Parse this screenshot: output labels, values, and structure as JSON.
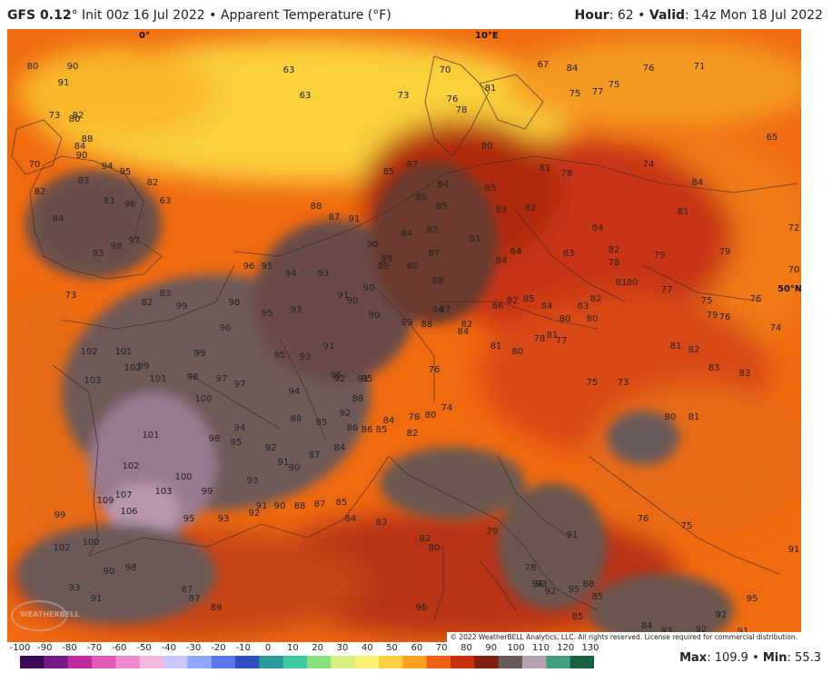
{
  "header": {
    "model": "GFS 0.12",
    "degree_mark": "°",
    "init": "Init 00z 16 Jul 2022",
    "separator": "•",
    "product": "Apparent Temperature (°F)",
    "hour_label": "Hour",
    "hour_value": ": 62",
    "valid_label": "Valid",
    "valid_value": ": 14z Mon 18 Jul 2022"
  },
  "map": {
    "coord_labels": [
      "0°",
      "10°E",
      "50°N"
    ],
    "copyright": "© 2022 WeatherBELL Analytics, LLC. All rights reserved. License required for commercial distribution.",
    "logo_text": "WEATHERBELL",
    "temperature_labels": [
      "80",
      "82",
      "84",
      "88",
      "90",
      "94",
      "95",
      "96",
      "97",
      "98",
      "93",
      "90",
      "91",
      "80",
      "73",
      "70",
      "82",
      "84",
      "83",
      "83",
      "82",
      "63",
      "63",
      "63",
      "73",
      "70",
      "76",
      "78",
      "80",
      "81",
      "75",
      "77",
      "75",
      "76",
      "71",
      "65",
      "67",
      "84",
      "85",
      "87",
      "86",
      "84",
      "85",
      "83",
      "82",
      "81",
      "78",
      "74",
      "84",
      "84",
      "83",
      "84",
      "82",
      "81",
      "78",
      "72",
      "88",
      "87",
      "91",
      "90",
      "89",
      "88",
      "87",
      "85",
      "84",
      "83",
      "81",
      "84",
      "79",
      "70",
      "96",
      "95",
      "94",
      "93",
      "91",
      "90",
      "89",
      "88",
      "87",
      "86",
      "85",
      "84",
      "83",
      "82",
      "81",
      "80",
      "79",
      "77",
      "75",
      "73",
      "82",
      "83",
      "99",
      "98",
      "96",
      "95",
      "93",
      "90",
      "90",
      "89",
      "88",
      "84",
      "82",
      "81",
      "80",
      "80",
      "79",
      "76",
      "76",
      "74",
      "102",
      "101",
      "99",
      "98",
      "97",
      "95",
      "93",
      "91",
      "92",
      "91",
      "84",
      "82",
      "81",
      "80",
      "78",
      "77",
      "75",
      "73",
      "81",
      "82",
      "83",
      "103",
      "102",
      "101",
      "100",
      "99",
      "97",
      "96",
      "95",
      "94",
      "92",
      "88",
      "86",
      "84",
      "82",
      "80",
      "78",
      "76",
      "74",
      "80",
      "81",
      "83",
      "109",
      "107",
      "106",
      "103",
      "102",
      "101",
      "100",
      "99",
      "98",
      "95",
      "94",
      "93",
      "92",
      "91",
      "90",
      "88",
      "87",
      "85",
      "84",
      "86",
      "85",
      "102",
      "100",
      "99",
      "98",
      "95",
      "93",
      "92",
      "91",
      "90",
      "88",
      "87",
      "85",
      "84",
      "83",
      "82",
      "80",
      "79",
      "78",
      "76",
      "75",
      "91",
      "93",
      "90",
      "87",
      "87",
      "89",
      "96",
      "95",
      "94",
      "93",
      "92",
      "91",
      "88",
      "85",
      "85",
      "84",
      "93",
      "92",
      "92",
      "91",
      "95",
      "91"
    ]
  },
  "colorbar": {
    "ticks": [
      "-100",
      "-90",
      "-80",
      "-70",
      "-60",
      "-50",
      "-40",
      "-30",
      "-20",
      "-10",
      "0",
      "10",
      "20",
      "30",
      "40",
      "50",
      "60",
      "70",
      "80",
      "90",
      "100",
      "110",
      "120",
      "130"
    ],
    "stops": [
      "#3a0a52",
      "#7a1a8a",
      "#c02a9a",
      "#e05ab8",
      "#f08ad0",
      "#f4b8e0",
      "#c8c8ff",
      "#8fa8ff",
      "#5a78e8",
      "#3050c0",
      "#2a9a9a",
      "#40c8a0",
      "#8ae080",
      "#d8f080",
      "#f8f070",
      "#ffd040",
      "#ffa020",
      "#f06010",
      "#c83010",
      "#802010",
      "#6a5a5a",
      "#b8a0b0",
      "#40a080",
      "#1a6040"
    ]
  },
  "stats": {
    "max_label": "Max",
    "max_value": ": 109.9",
    "sep": " • ",
    "min_label": "Min",
    "min_value": ": 55.3"
  }
}
